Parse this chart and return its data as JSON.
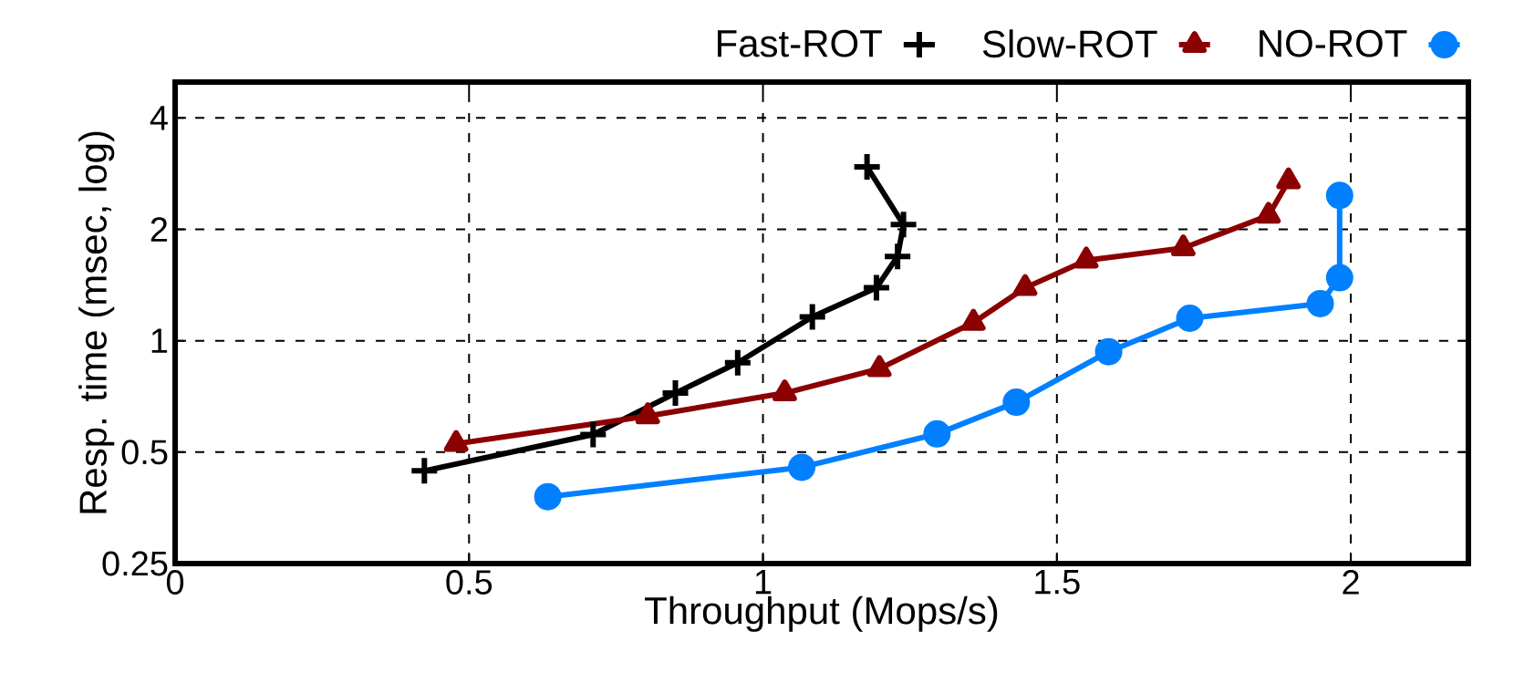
{
  "chart_data": {
    "type": "line",
    "xlabel": "Throughput (Mops/s)",
    "ylabel": "Resp. time (msec, log)",
    "log": "y",
    "grid": true,
    "legend": "top right",
    "xlim": [
      0,
      2.2
    ],
    "ylim": [
      0.25,
      5
    ],
    "xticks": [
      0,
      0.5,
      1,
      1.5,
      2
    ],
    "yticks": [
      0.25,
      0.5,
      1,
      2,
      4
    ],
    "series": [
      {
        "name": "Fast-ROT",
        "color": "#000000",
        "marker": "cross",
        "x": [
          0.424,
          0.711,
          0.851,
          0.957,
          1.084,
          1.193,
          1.229,
          1.239,
          1.177
        ],
        "values": [
          0.445,
          0.558,
          0.722,
          0.872,
          1.16,
          1.39,
          1.69,
          2.06,
          2.95
        ]
      },
      {
        "name": "Slow-ROT",
        "color": "#8b0000",
        "marker": "triangle",
        "x": [
          0.478,
          0.804,
          1.037,
          1.198,
          1.358,
          1.446,
          1.55,
          1.715,
          1.86,
          1.894
        ],
        "values": [
          0.527,
          0.626,
          0.722,
          0.84,
          1.12,
          1.39,
          1.65,
          1.78,
          2.18,
          2.7
        ]
      },
      {
        "name": "NO-ROT",
        "color": "#0080ff",
        "marker": "circle",
        "x": [
          0.634,
          1.066,
          1.296,
          1.431,
          1.588,
          1.726,
          1.948,
          1.981,
          1.981
        ],
        "values": [
          0.379,
          0.455,
          0.56,
          0.682,
          0.934,
          1.15,
          1.26,
          1.48,
          2.47
        ]
      }
    ]
  }
}
